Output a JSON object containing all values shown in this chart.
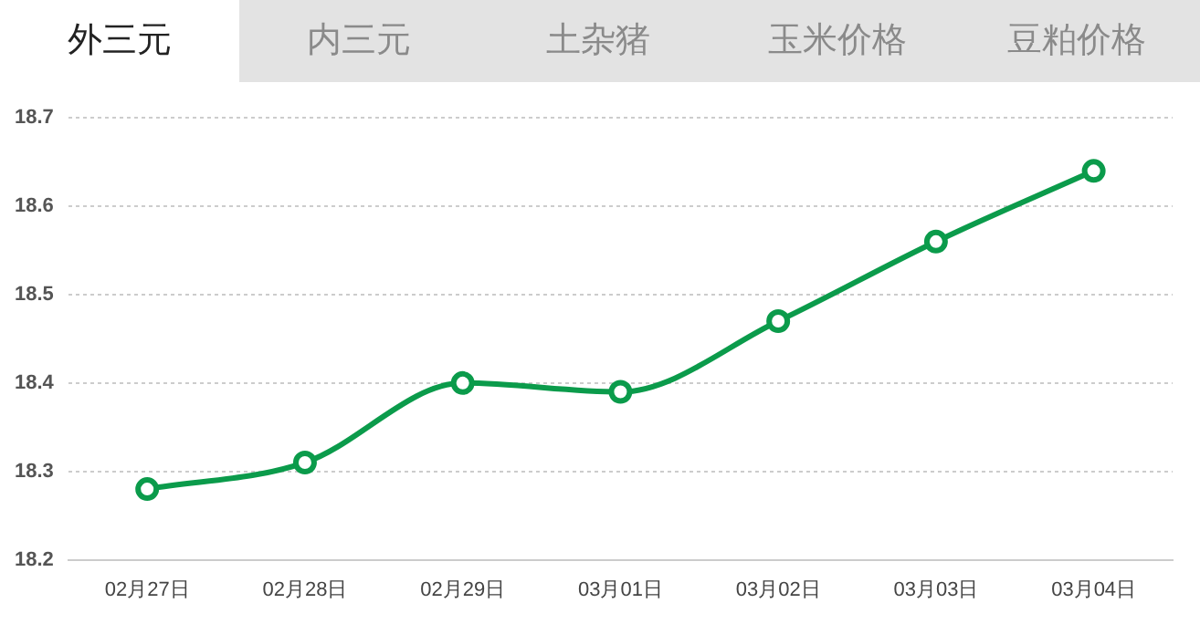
{
  "chart_data": {
    "type": "line",
    "annotations": [
      "外三元",
      "内三元",
      "土杂猪",
      "玉米价格",
      "豆粕价格"
    ],
    "categories": [
      "02月27日",
      "02月28日",
      "02月29日",
      "03月01日",
      "03月02日",
      "03月03日",
      "03月04日"
    ],
    "series": [
      {
        "color": "#0b9b4b",
        "values": [
          18.28,
          18.31,
          18.4,
          18.39,
          18.47,
          18.56,
          18.64
        ]
      }
    ],
    "ylim": [
      18.2,
      18.7
    ],
    "yticks": [
      18.2,
      18.3,
      18.4,
      18.5,
      18.6,
      18.7
    ],
    "grid": "y",
    "legend": false,
    "marker": "circle",
    "line_style": "solid"
  }
}
